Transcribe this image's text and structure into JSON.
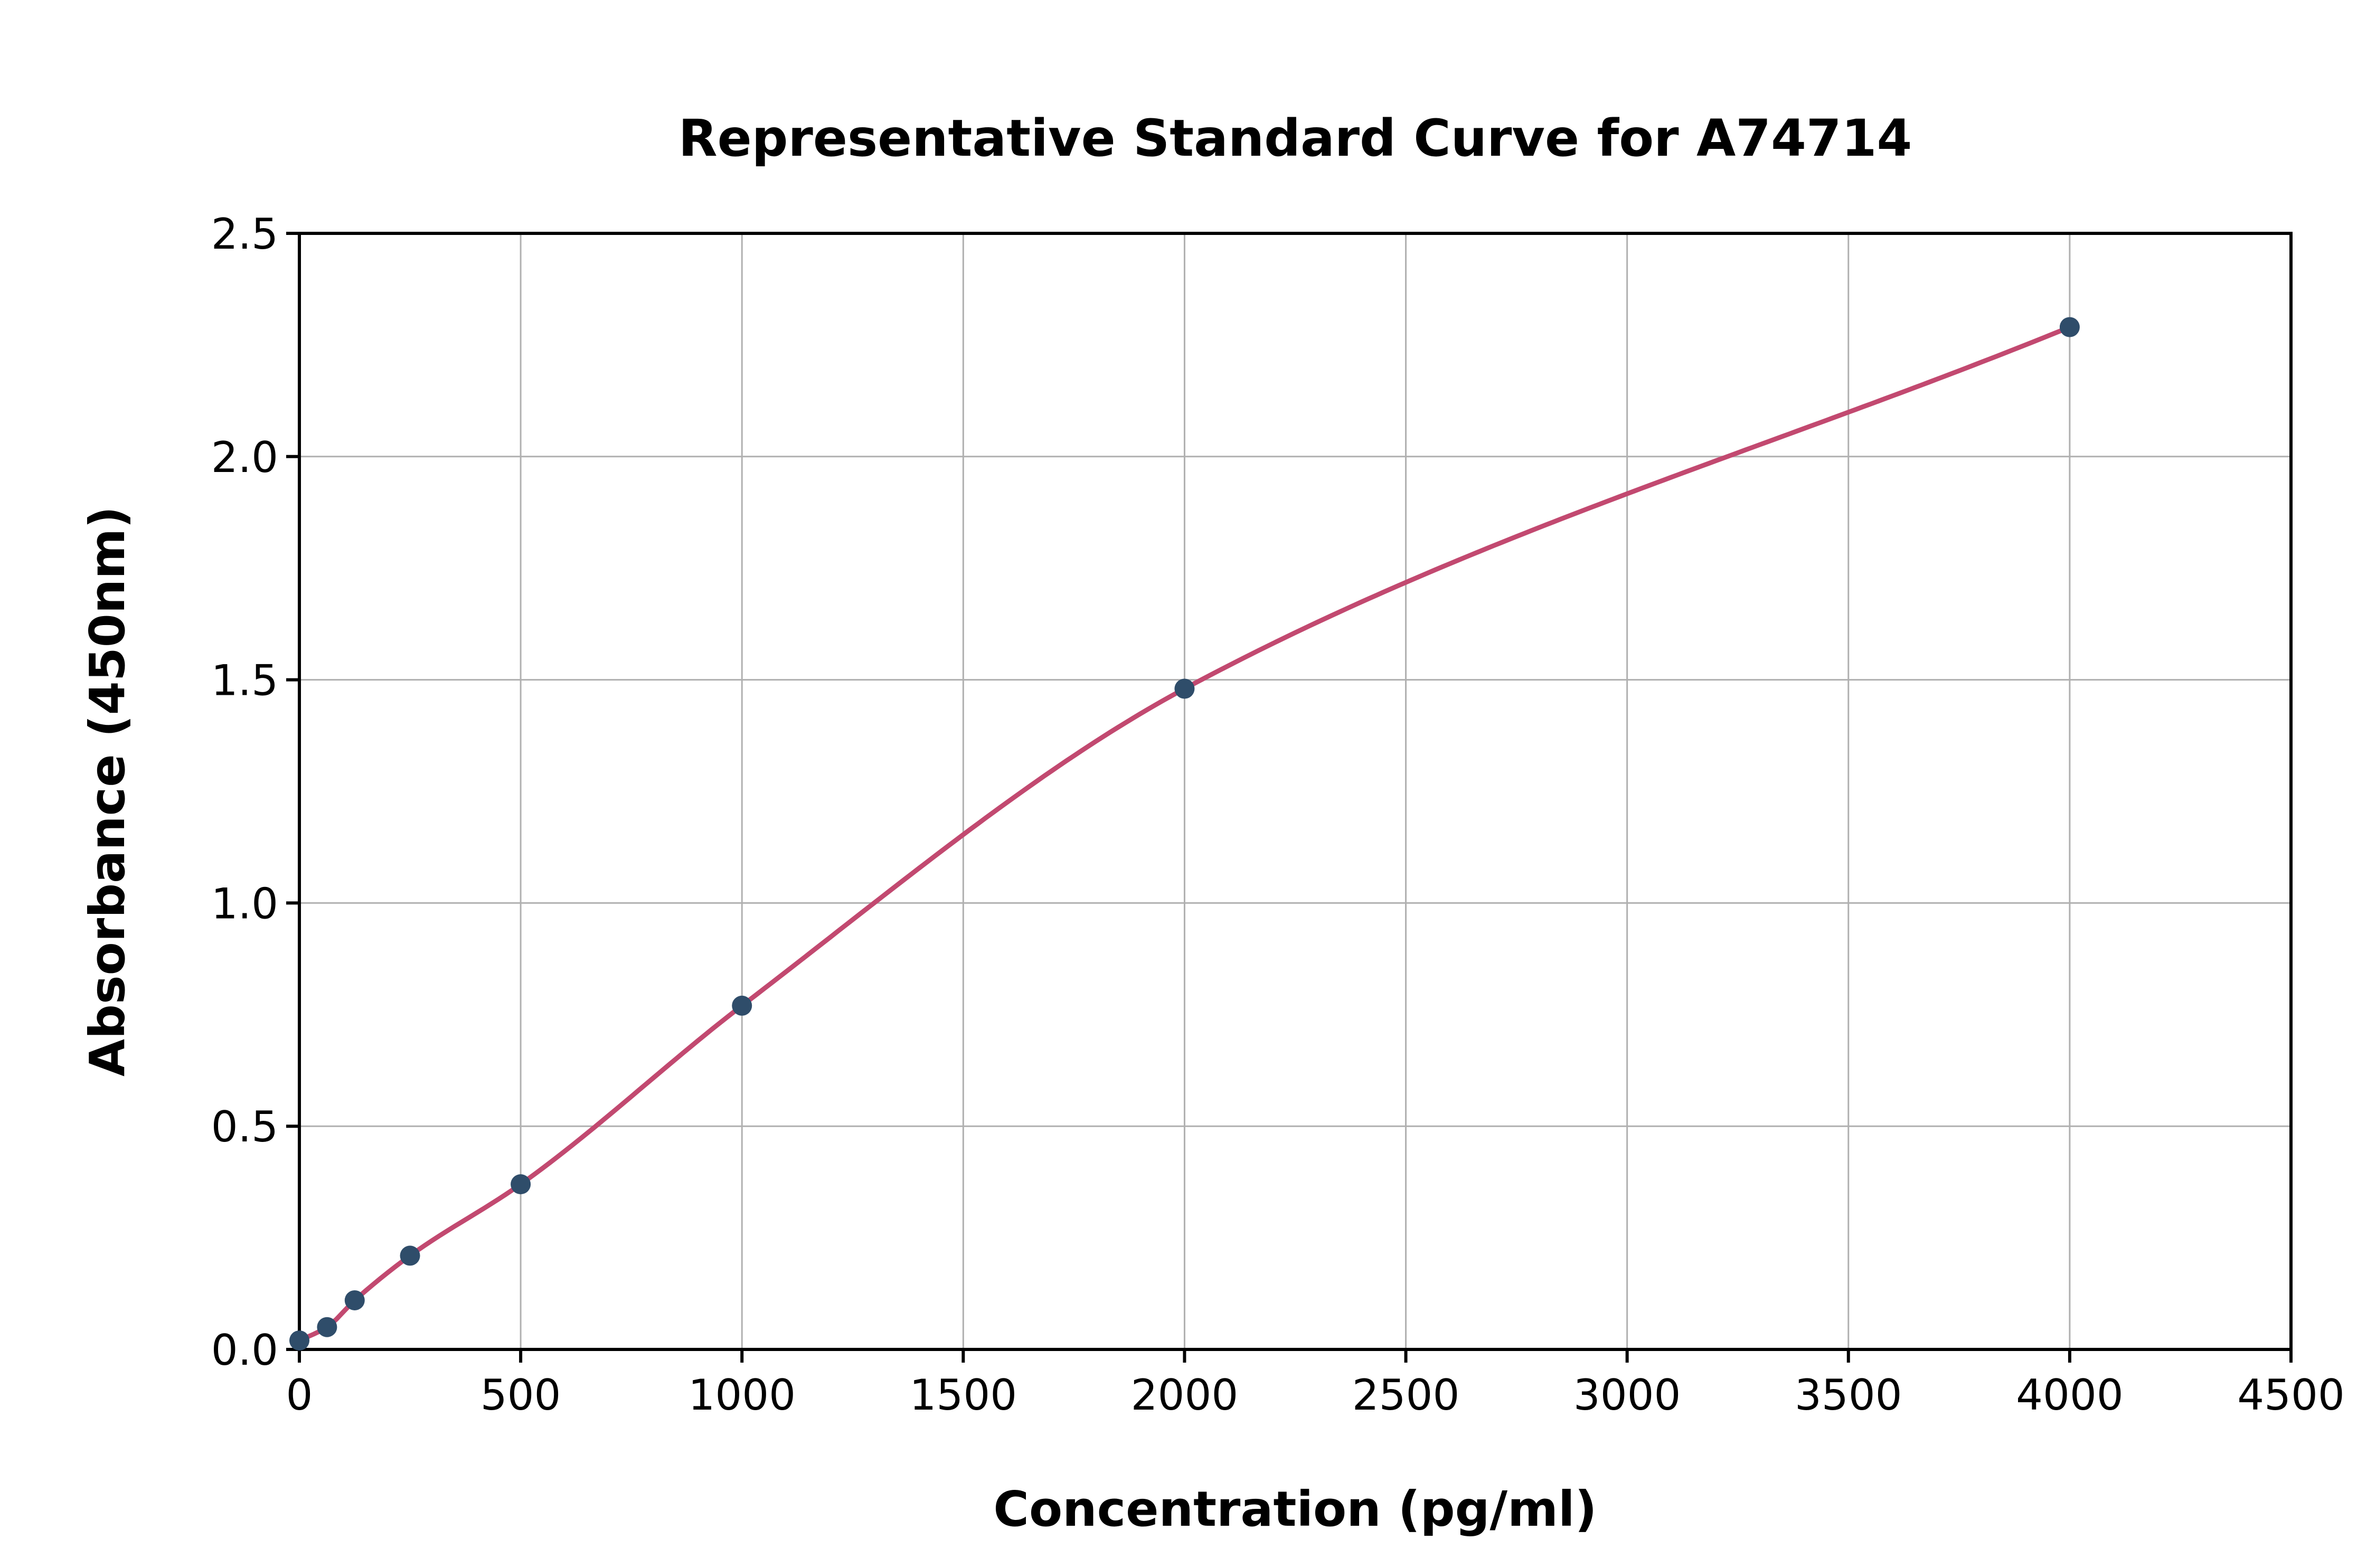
{
  "chart_data": {
    "type": "scatter",
    "title": "Representative Standard Curve for A74714",
    "xlabel": "Concentration (pg/ml)",
    "ylabel": "Absorbance (450nm)",
    "xlim": [
      0,
      4500
    ],
    "ylim": [
      0,
      2.5
    ],
    "x_ticks": [
      0,
      500,
      1000,
      1500,
      2000,
      2500,
      3000,
      3500,
      4000,
      4500
    ],
    "y_ticks": [
      0.0,
      0.5,
      1.0,
      1.5,
      2.0,
      2.5
    ],
    "grid": true,
    "legend": "none",
    "series": [
      {
        "name": "standard-points",
        "x": [
          0,
          62.5,
          125,
          250,
          500,
          1000,
          2000,
          4000
        ],
        "y": [
          0.02,
          0.05,
          0.11,
          0.21,
          0.37,
          0.77,
          1.48,
          2.29
        ]
      }
    ],
    "fit_curve": {
      "kind": "4PL-style smooth fit through points",
      "x_start": 0,
      "x_end": 4000
    },
    "colors": {
      "curve": "#c24970",
      "points": "#2f4d6a",
      "grid": "#b0b0b0",
      "frame": "#000000",
      "text": "#000000",
      "background": "#ffffff"
    }
  }
}
